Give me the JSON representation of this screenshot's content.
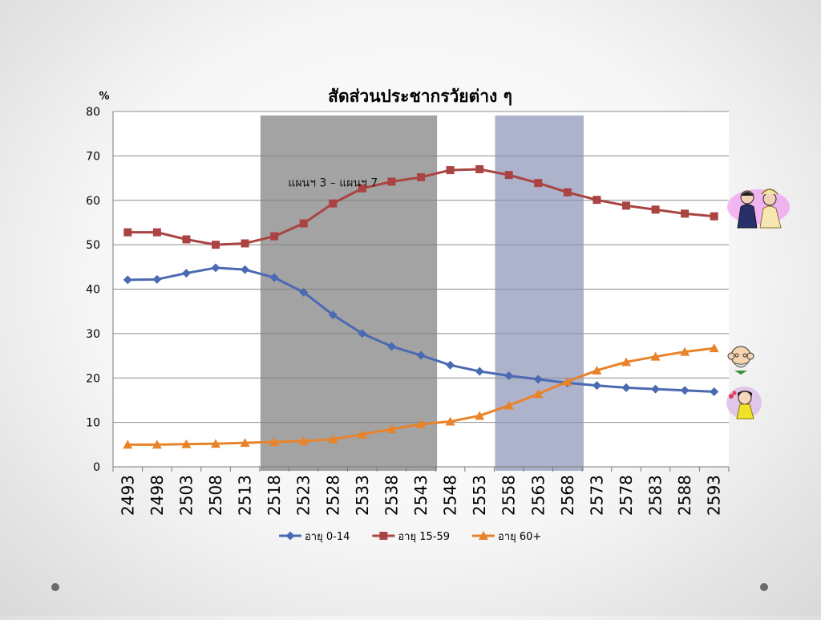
{
  "chart_data": {
    "type": "line",
    "title": "สัดส่วนประชากรวัยต่าง ๆ",
    "ylabel": "%",
    "xlabel": "",
    "ylim": [
      0,
      80
    ],
    "yticks": [
      0,
      10,
      20,
      30,
      40,
      50,
      60,
      70,
      80
    ],
    "grid": true,
    "legend_position": "bottom",
    "x": [
      "2493",
      "2498",
      "2503",
      "2508",
      "2513",
      "2518",
      "2523",
      "2528",
      "2533",
      "2538",
      "2543",
      "2548",
      "2553",
      "2558",
      "2563",
      "2568",
      "2573",
      "2578",
      "2583",
      "2588",
      "2593"
    ],
    "series": [
      {
        "name": "อายุ 0-14",
        "color": "#4a6ab2",
        "marker": "diamond",
        "values": [
          42.1,
          42.2,
          43.6,
          44.8,
          44.4,
          42.6,
          39.3,
          34.2,
          30.0,
          27.1,
          25.1,
          22.9,
          21.5,
          20.5,
          19.7,
          18.9,
          18.3,
          17.8,
          17.5,
          17.2,
          16.9
        ]
      },
      {
        "name": "อายุ 15-59",
        "color": "#a94442",
        "marker": "square",
        "values": [
          52.8,
          52.8,
          51.2,
          50.0,
          50.3,
          51.9,
          54.8,
          59.3,
          62.7,
          64.2,
          65.2,
          66.8,
          67.0,
          65.7,
          63.9,
          61.8,
          60.1,
          58.8,
          57.9,
          57.0,
          56.4
        ]
      },
      {
        "name": "อายุ 60+",
        "color": "#e8832a",
        "marker": "triangle",
        "values": [
          5.0,
          5.0,
          5.1,
          5.2,
          5.4,
          5.6,
          5.8,
          6.2,
          7.3,
          8.5,
          9.6,
          10.2,
          11.5,
          13.8,
          16.4,
          19.2,
          21.7,
          23.6,
          24.8,
          25.9,
          26.7
        ]
      }
    ],
    "shaded_regions": [
      {
        "x_start": "2518",
        "x_end": "2543",
        "color": "#7f7f7f",
        "opacity": 0.72
      },
      {
        "x_start": "2558",
        "x_end": "2568",
        "color": "#8a93b5",
        "opacity": 0.7
      }
    ],
    "annotations": [
      {
        "text": "แผนฯ 3 – แผนฯ 7",
        "x": "2528",
        "y": 64
      }
    ]
  },
  "decorations": {
    "icons": [
      "thai-couple-icon",
      "elderly-man-icon",
      "child-with-flower-icon"
    ],
    "corner_dots": 2
  }
}
